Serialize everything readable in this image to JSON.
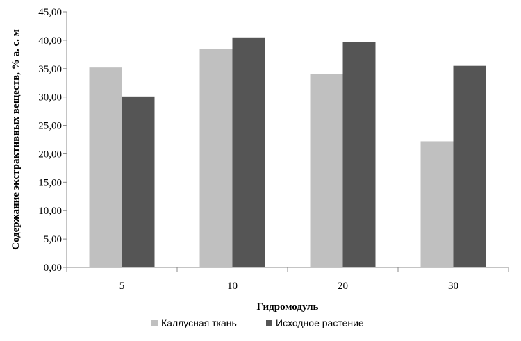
{
  "chart_data": {
    "type": "bar",
    "categories": [
      "5",
      "10",
      "20",
      "30"
    ],
    "series": [
      {
        "name": "Каллусная ткань",
        "values": [
          35.2,
          38.5,
          34.0,
          22.2
        ],
        "color": "#c0c0c0"
      },
      {
        "name": "Исходное растение",
        "values": [
          30.1,
          40.5,
          39.7,
          35.5
        ],
        "color": "#555555"
      }
    ],
    "title": "",
    "xlabel": "Гидромодуль",
    "ylabel": "Содержание экстрактивных веществ, % а. с. м",
    "ylim": [
      0,
      45
    ],
    "yticks": [
      "0,00",
      "5,00",
      "10,00",
      "15,00",
      "20,00",
      "25,00",
      "30,00",
      "35,00",
      "40,00",
      "45,00"
    ],
    "grid": false,
    "legend_position": "bottom"
  }
}
